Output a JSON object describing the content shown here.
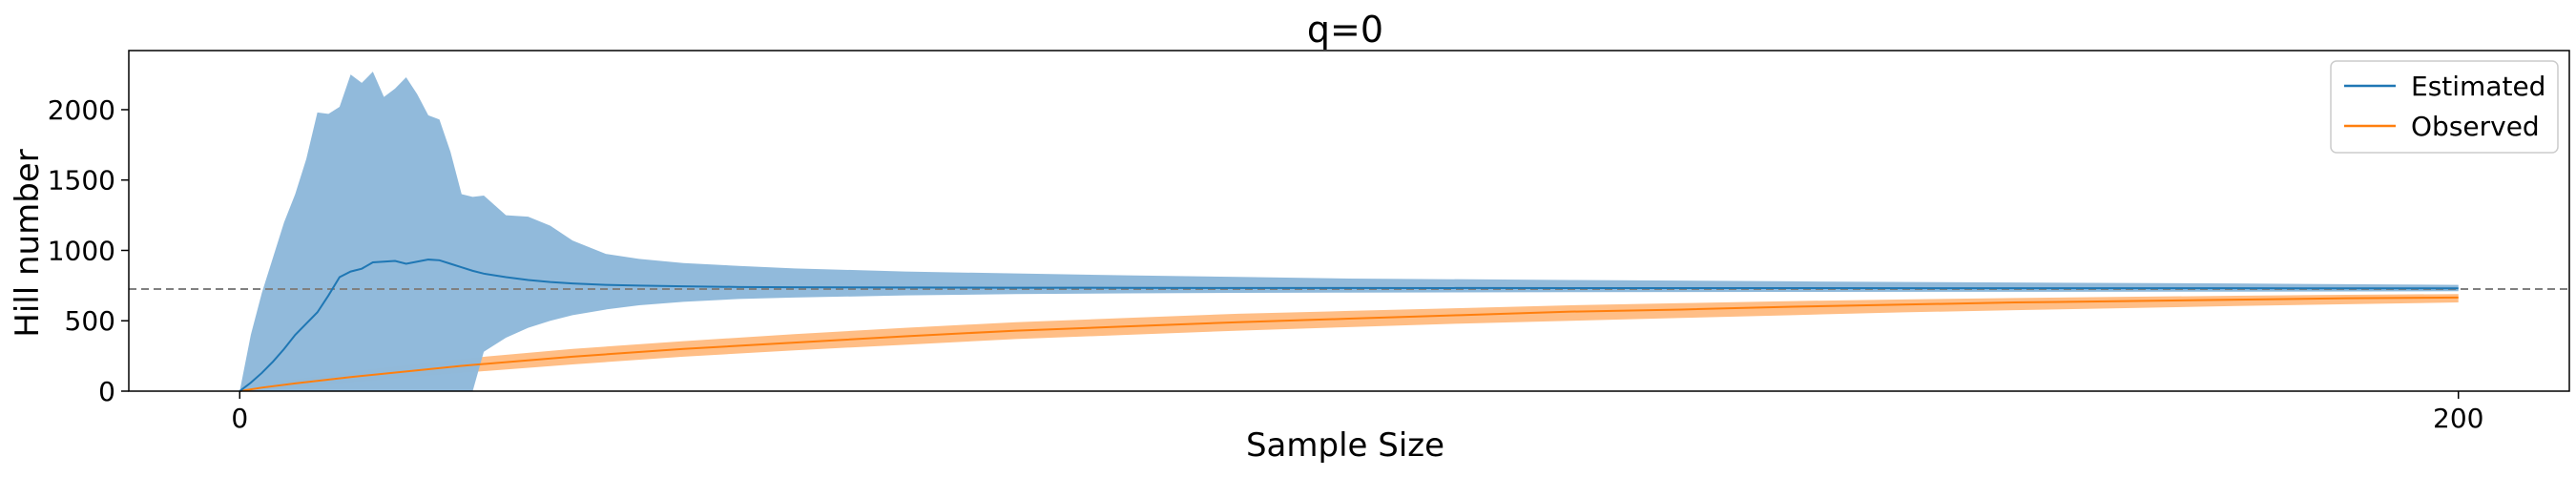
{
  "chart_data": {
    "type": "line",
    "title": "q=0",
    "xlabel": "Sample Size",
    "ylabel": "Hill number",
    "xlim": [
      -10,
      210
    ],
    "ylim": [
      0,
      2420
    ],
    "xticks": [
      0,
      200
    ],
    "yticks": [
      0,
      500,
      1000,
      1500,
      2000
    ],
    "grid": false,
    "legend_position": "top-right",
    "reference_line": {
      "y": 725,
      "style": "dashed",
      "color": "#808080"
    },
    "colors": {
      "estimated": "#1f77b4",
      "observed": "#ff7f0e"
    },
    "series": [
      {
        "name": "Estimated",
        "color": "#1f77b4",
        "band_color": "#8fb9da",
        "x": [
          0,
          1,
          2,
          3,
          4,
          5,
          6,
          7,
          8,
          9,
          10,
          11,
          12,
          13,
          14,
          15,
          16,
          17,
          18,
          19,
          20,
          21,
          22,
          24,
          26,
          28,
          30,
          33,
          36,
          40,
          45,
          50,
          60,
          70,
          80,
          90,
          100,
          120,
          140,
          160,
          180,
          200
        ],
        "y": [
          0,
          60,
          130,
          210,
          300,
          400,
          480,
          560,
          680,
          810,
          850,
          870,
          915,
          920,
          925,
          905,
          920,
          935,
          930,
          905,
          880,
          855,
          835,
          810,
          790,
          775,
          765,
          755,
          750,
          745,
          740,
          738,
          736,
          735,
          734,
          733,
          733,
          732,
          732,
          731,
          731,
          730
        ],
        "upper": [
          0,
          400,
          700,
          950,
          1200,
          1400,
          1650,
          1980,
          1970,
          2020,
          2250,
          2190,
          2270,
          2090,
          2150,
          2230,
          2110,
          1960,
          1930,
          1700,
          1400,
          1380,
          1390,
          1250,
          1240,
          1175,
          1070,
          975,
          940,
          910,
          890,
          872,
          850,
          836,
          823,
          812,
          800,
          790,
          780,
          772,
          765,
          755
        ],
        "lower": [
          0,
          0,
          0,
          0,
          0,
          0,
          0,
          0,
          0,
          0,
          0,
          0,
          0,
          0,
          0,
          0,
          0,
          0,
          0,
          0,
          0,
          0,
          280,
          380,
          450,
          500,
          540,
          580,
          610,
          635,
          655,
          665,
          680,
          690,
          695,
          698,
          700,
          703,
          705,
          706,
          707,
          710
        ]
      },
      {
        "name": "Observed",
        "color": "#ff7f0e",
        "band_color": "#ffbb80",
        "x": [
          0,
          2,
          5,
          10,
          20,
          30,
          40,
          50,
          60,
          70,
          80,
          90,
          100,
          110,
          120,
          130,
          140,
          150,
          160,
          170,
          180,
          190,
          200
        ],
        "y": [
          0,
          25,
          55,
          100,
          180,
          245,
          300,
          345,
          390,
          430,
          460,
          490,
          515,
          540,
          565,
          580,
          600,
          615,
          630,
          640,
          650,
          660,
          665
        ],
        "upper": [
          0,
          40,
          85,
          140,
          230,
          300,
          355,
          405,
          450,
          490,
          520,
          550,
          570,
          590,
          610,
          625,
          640,
          652,
          662,
          670,
          678,
          685,
          690
        ],
        "lower": [
          0,
          10,
          25,
          60,
          130,
          190,
          245,
          290,
          330,
          370,
          400,
          430,
          455,
          480,
          500,
          520,
          540,
          560,
          575,
          590,
          605,
          618,
          630
        ]
      }
    ]
  }
}
